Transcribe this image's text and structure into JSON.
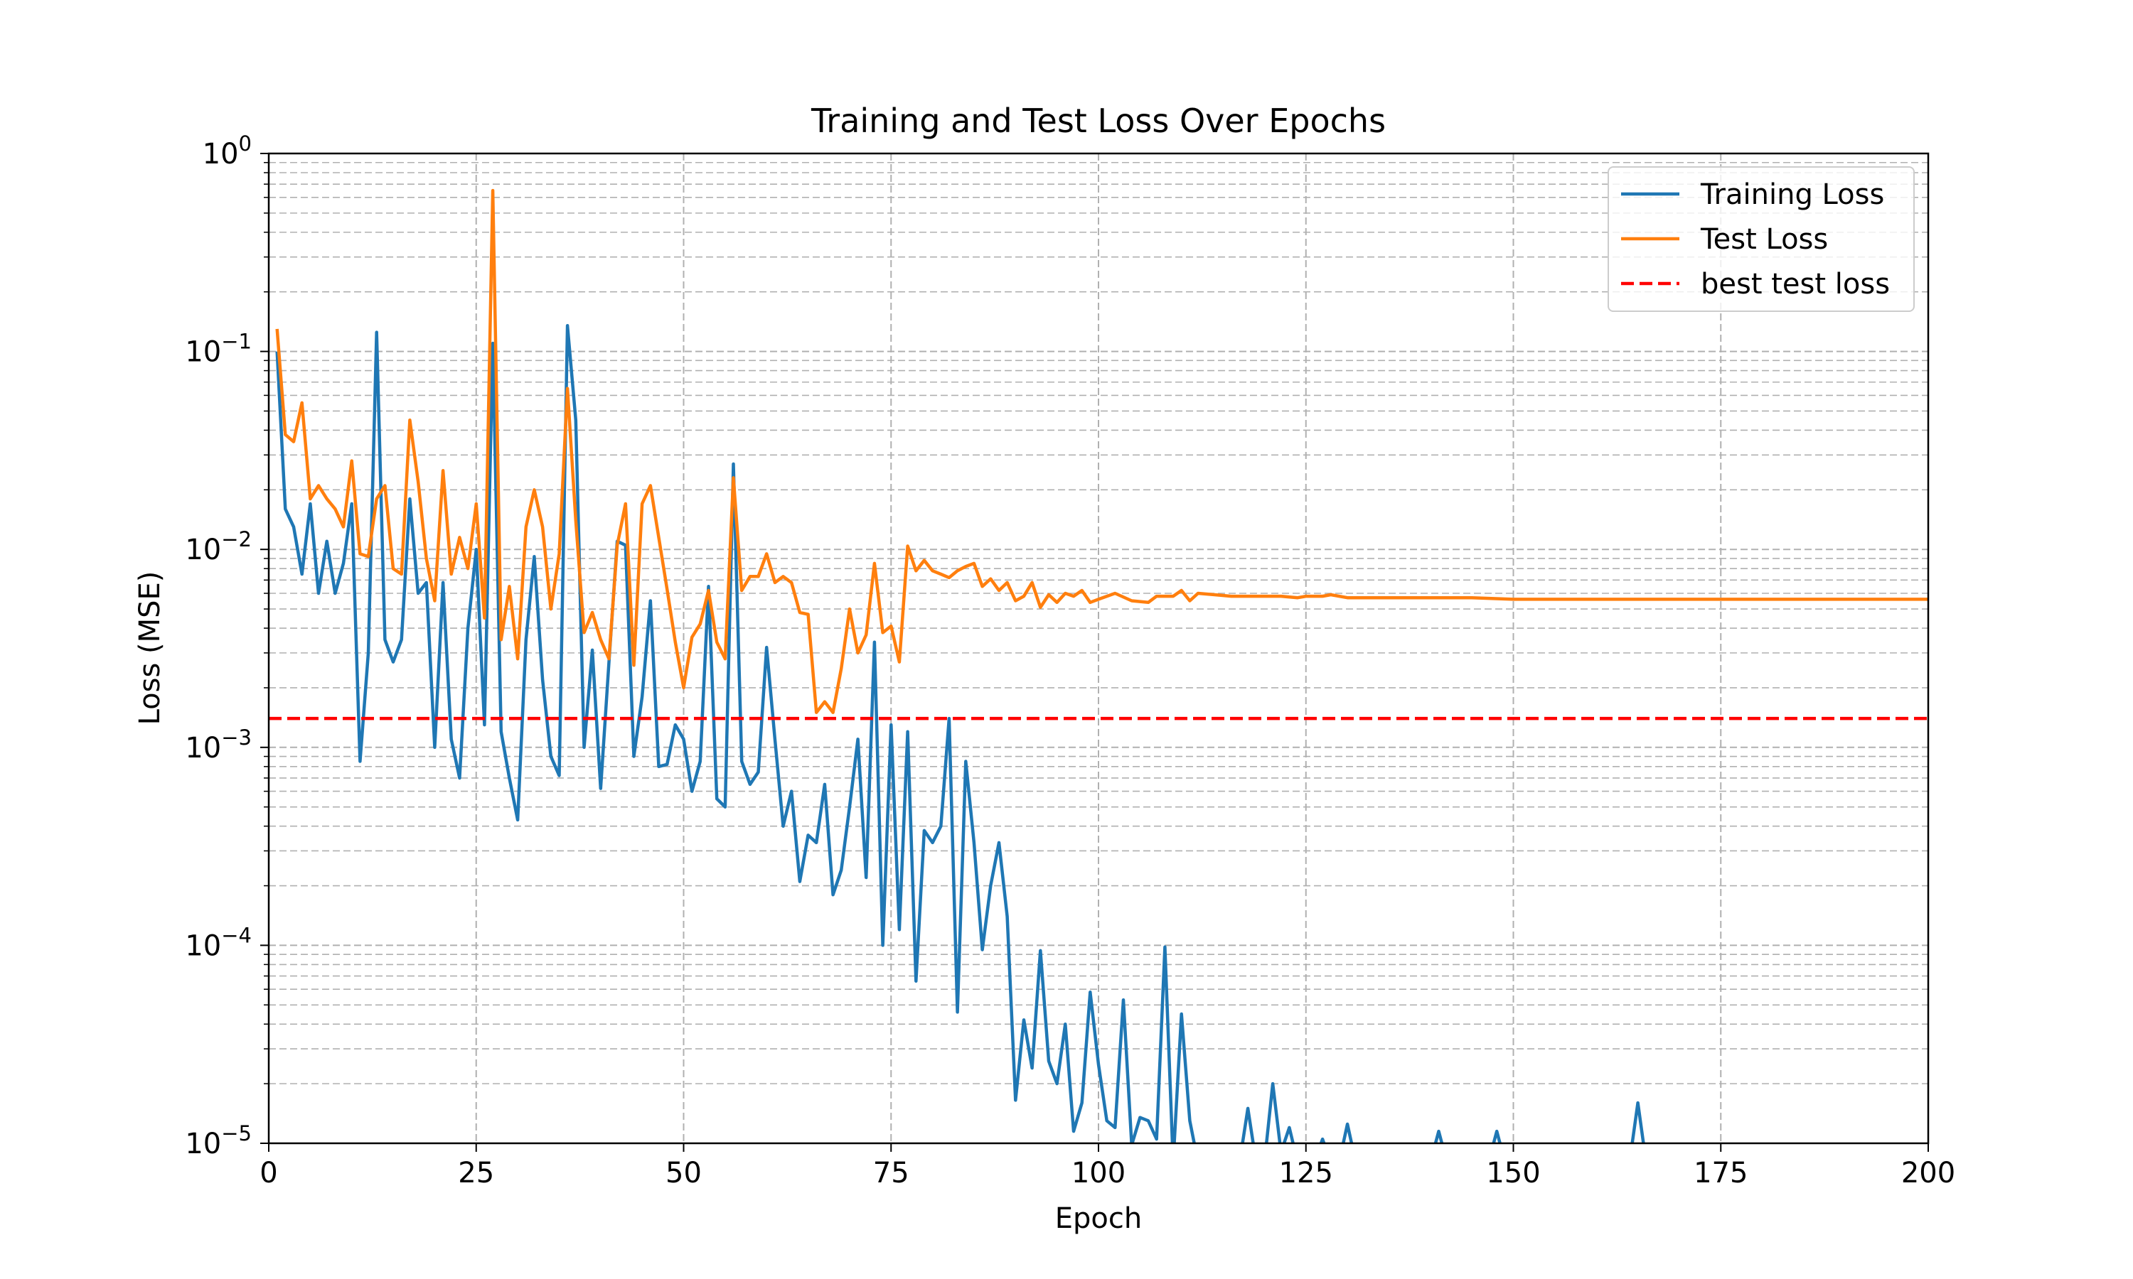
{
  "chart_data": {
    "type": "line",
    "title": "Training and Test Loss Over Epochs",
    "xlabel": "Epoch",
    "ylabel": "Loss (MSE)",
    "xlim": [
      0,
      200
    ],
    "ylim": [
      1e-05,
      1
    ],
    "yscale": "log",
    "grid": true,
    "legend_position": "top-right",
    "x_ticks": [
      0,
      25,
      50,
      75,
      100,
      125,
      150,
      175,
      200
    ],
    "x_tick_labels": [
      "0",
      "25",
      "50",
      "75",
      "100",
      "125",
      "150",
      "175",
      "200"
    ],
    "y_ticks": [
      1e-05,
      0.0001,
      0.001,
      0.01,
      0.1,
      1
    ],
    "y_tick_base": "10",
    "y_tick_exponents": [
      "−5",
      "−4",
      "−3",
      "−2",
      "−1",
      "0"
    ],
    "series": [
      {
        "name": "Training Loss",
        "color": "#1f77b4",
        "style": "solid",
        "points": [
          [
            1,
            0.1
          ],
          [
            2,
            0.016
          ],
          [
            3,
            0.013
          ],
          [
            4,
            0.0075
          ],
          [
            5,
            0.017
          ],
          [
            6,
            0.006
          ],
          [
            7,
            0.011
          ],
          [
            8,
            0.006
          ],
          [
            9,
            0.0085
          ],
          [
            10,
            0.017
          ],
          [
            11,
            0.00085
          ],
          [
            12,
            0.003
          ],
          [
            13,
            0.125
          ],
          [
            14,
            0.0035
          ],
          [
            15,
            0.0027
          ],
          [
            16,
            0.0035
          ],
          [
            17,
            0.018
          ],
          [
            18,
            0.006
          ],
          [
            19,
            0.0068
          ],
          [
            20,
            0.001
          ],
          [
            21,
            0.0068
          ],
          [
            22,
            0.0011
          ],
          [
            23,
            0.0007
          ],
          [
            24,
            0.004
          ],
          [
            25,
            0.01
          ],
          [
            26,
            0.0013
          ],
          [
            27,
            0.11
          ],
          [
            28,
            0.0012
          ],
          [
            29,
            0.0007
          ],
          [
            30,
            0.00043
          ],
          [
            31,
            0.0035
          ],
          [
            32,
            0.0092
          ],
          [
            33,
            0.0022
          ],
          [
            34,
            0.0009
          ],
          [
            35,
            0.00072
          ],
          [
            36,
            0.135
          ],
          [
            37,
            0.045
          ],
          [
            38,
            0.001
          ],
          [
            39,
            0.0031
          ],
          [
            40,
            0.00062
          ],
          [
            41,
            0.0027
          ],
          [
            42,
            0.011
          ],
          [
            43,
            0.0105
          ],
          [
            44,
            0.0009
          ],
          [
            45,
            0.0018
          ],
          [
            46,
            0.0055
          ],
          [
            47,
            0.0008
          ],
          [
            48,
            0.00082
          ],
          [
            49,
            0.0013
          ],
          [
            50,
            0.0011
          ],
          [
            51,
            0.0006
          ],
          [
            52,
            0.00085
          ],
          [
            53,
            0.0065
          ],
          [
            54,
            0.00055
          ],
          [
            55,
            0.0005
          ],
          [
            56,
            0.027
          ],
          [
            57,
            0.00085
          ],
          [
            58,
            0.00065
          ],
          [
            59,
            0.00075
          ],
          [
            60,
            0.0032
          ],
          [
            61,
            0.0011
          ],
          [
            62,
            0.0004
          ],
          [
            63,
            0.0006
          ],
          [
            64,
            0.00021
          ],
          [
            65,
            0.00036
          ],
          [
            66,
            0.00033
          ],
          [
            67,
            0.00065
          ],
          [
            68,
            0.00018
          ],
          [
            69,
            0.00024
          ],
          [
            70,
            0.0005
          ],
          [
            71,
            0.0011
          ],
          [
            72,
            0.00022
          ],
          [
            73,
            0.0034
          ],
          [
            74,
            0.0001
          ],
          [
            75,
            0.0013
          ],
          [
            76,
            0.00012
          ],
          [
            77,
            0.0012
          ],
          [
            78,
            6.6e-05
          ],
          [
            79,
            0.00038
          ],
          [
            80,
            0.00033
          ],
          [
            81,
            0.0004
          ],
          [
            82,
            0.0014
          ],
          [
            83,
            4.6e-05
          ],
          [
            84,
            0.00085
          ],
          [
            85,
            0.00033
          ],
          [
            86,
            9.5e-05
          ],
          [
            87,
            0.0002
          ],
          [
            88,
            0.00033
          ],
          [
            89,
            0.00014
          ],
          [
            90,
            1.65e-05
          ],
          [
            91,
            4.2e-05
          ],
          [
            92,
            2.4e-05
          ],
          [
            93,
            9.4e-05
          ],
          [
            94,
            2.6e-05
          ],
          [
            95,
            2e-05
          ],
          [
            96,
            4e-05
          ],
          [
            97,
            1.15e-05
          ],
          [
            98,
            1.6e-05
          ],
          [
            99,
            5.8e-05
          ],
          [
            100,
            2.5e-05
          ],
          [
            101,
            1.3e-05
          ],
          [
            102,
            1.2e-05
          ],
          [
            103,
            5.3e-05
          ],
          [
            104,
            9.8e-06
          ],
          [
            105,
            1.35e-05
          ],
          [
            106,
            1.3e-05
          ],
          [
            107,
            1.05e-05
          ],
          [
            108,
            9.8e-05
          ],
          [
            109,
            8e-06
          ],
          [
            110,
            4.5e-05
          ],
          [
            111,
            1.3e-05
          ],
          [
            112,
            8e-06
          ],
          [
            113,
            8e-06
          ],
          [
            114,
            8e-06
          ],
          [
            115,
            8e-06
          ],
          [
            116,
            8e-06
          ],
          [
            117,
            8e-06
          ],
          [
            118,
            1.5e-05
          ],
          [
            119,
            8e-06
          ],
          [
            120,
            8e-06
          ],
          [
            121,
            2e-05
          ],
          [
            122,
            9e-06
          ],
          [
            123,
            1.2e-05
          ],
          [
            124,
            8e-06
          ],
          [
            125,
            8e-06
          ],
          [
            126,
            8e-06
          ],
          [
            127,
            1.05e-05
          ],
          [
            128,
            8e-06
          ],
          [
            129,
            8e-06
          ],
          [
            130,
            1.25e-05
          ],
          [
            131,
            8e-06
          ],
          [
            132,
            8e-06
          ],
          [
            140,
            8e-06
          ],
          [
            141,
            1.15e-05
          ],
          [
            142,
            8e-06
          ],
          [
            147,
            8e-06
          ],
          [
            148,
            1.15e-05
          ],
          [
            149,
            8e-06
          ],
          [
            164,
            8e-06
          ],
          [
            165,
            1.6e-05
          ],
          [
            166,
            8e-06
          ],
          [
            200,
            8e-06
          ]
        ]
      },
      {
        "name": "Test Loss",
        "color": "#ff7f0e",
        "style": "solid",
        "points": [
          [
            1,
            0.13
          ],
          [
            2,
            0.038
          ],
          [
            3,
            0.035
          ],
          [
            4,
            0.055
          ],
          [
            5,
            0.018
          ],
          [
            6,
            0.021
          ],
          [
            7,
            0.018
          ],
          [
            8,
            0.016
          ],
          [
            9,
            0.013
          ],
          [
            10,
            0.028
          ],
          [
            11,
            0.0095
          ],
          [
            12,
            0.0092
          ],
          [
            13,
            0.018
          ],
          [
            14,
            0.021
          ],
          [
            15,
            0.008
          ],
          [
            16,
            0.0075
          ],
          [
            17,
            0.045
          ],
          [
            18,
            0.022
          ],
          [
            19,
            0.009
          ],
          [
            20,
            0.0055
          ],
          [
            21,
            0.025
          ],
          [
            22,
            0.0075
          ],
          [
            23,
            0.0115
          ],
          [
            24,
            0.008
          ],
          [
            25,
            0.017
          ],
          [
            26,
            0.0045
          ],
          [
            27,
            0.65
          ],
          [
            28,
            0.0035
          ],
          [
            29,
            0.0065
          ],
          [
            30,
            0.0028
          ],
          [
            31,
            0.013
          ],
          [
            32,
            0.02
          ],
          [
            33,
            0.013
          ],
          [
            34,
            0.005
          ],
          [
            35,
            0.0095
          ],
          [
            36,
            0.065
          ],
          [
            37,
            0.014
          ],
          [
            38,
            0.0038
          ],
          [
            39,
            0.0048
          ],
          [
            40,
            0.0035
          ],
          [
            41,
            0.0028
          ],
          [
            42,
            0.0105
          ],
          [
            43,
            0.017
          ],
          [
            44,
            0.0026
          ],
          [
            45,
            0.017
          ],
          [
            46,
            0.021
          ],
          [
            47,
            0.0115
          ],
          [
            48,
            0.0063
          ],
          [
            49,
            0.0034
          ],
          [
            50,
            0.002
          ],
          [
            51,
            0.0036
          ],
          [
            52,
            0.0042
          ],
          [
            53,
            0.0062
          ],
          [
            54,
            0.0034
          ],
          [
            55,
            0.0028
          ],
          [
            56,
            0.023
          ],
          [
            57,
            0.0062
          ],
          [
            58,
            0.0073
          ],
          [
            59,
            0.0073
          ],
          [
            60,
            0.0095
          ],
          [
            61,
            0.0068
          ],
          [
            62,
            0.0073
          ],
          [
            63,
            0.0068
          ],
          [
            64,
            0.0048
          ],
          [
            65,
            0.0047
          ],
          [
            66,
            0.0015
          ],
          [
            67,
            0.0017
          ],
          [
            68,
            0.0015
          ],
          [
            69,
            0.0025
          ],
          [
            70,
            0.005
          ],
          [
            71,
            0.003
          ],
          [
            72,
            0.0037
          ],
          [
            73,
            0.0085
          ],
          [
            74,
            0.0038
          ],
          [
            75,
            0.0041
          ],
          [
            76,
            0.0027
          ],
          [
            77,
            0.0104
          ],
          [
            78,
            0.0078
          ],
          [
            79,
            0.0088
          ],
          [
            80,
            0.0078
          ],
          [
            81,
            0.0075
          ],
          [
            82,
            0.0072
          ],
          [
            83,
            0.0078
          ],
          [
            84,
            0.0082
          ],
          [
            85,
            0.0085
          ],
          [
            86,
            0.0065
          ],
          [
            87,
            0.0071
          ],
          [
            88,
            0.0062
          ],
          [
            89,
            0.0068
          ],
          [
            90,
            0.0055
          ],
          [
            91,
            0.0058
          ],
          [
            92,
            0.0068
          ],
          [
            93,
            0.0051
          ],
          [
            94,
            0.0059
          ],
          [
            95,
            0.0054
          ],
          [
            96,
            0.006
          ],
          [
            97,
            0.0058
          ],
          [
            98,
            0.0062
          ],
          [
            99,
            0.0054
          ],
          [
            100,
            0.0056
          ],
          [
            102,
            0.006
          ],
          [
            104,
            0.0055
          ],
          [
            106,
            0.0054
          ],
          [
            107,
            0.0058
          ],
          [
            109,
            0.0058
          ],
          [
            110,
            0.0062
          ],
          [
            111,
            0.0055
          ],
          [
            112,
            0.006
          ],
          [
            114,
            0.0059
          ],
          [
            116,
            0.0058
          ],
          [
            118,
            0.0058
          ],
          [
            120,
            0.0058
          ],
          [
            122,
            0.0058
          ],
          [
            124,
            0.0057
          ],
          [
            125,
            0.0058
          ],
          [
            127,
            0.0058
          ],
          [
            128,
            0.0059
          ],
          [
            130,
            0.0057
          ],
          [
            135,
            0.0057
          ],
          [
            140,
            0.0057
          ],
          [
            145,
            0.0057
          ],
          [
            150,
            0.0056
          ],
          [
            160,
            0.0056
          ],
          [
            170,
            0.0056
          ],
          [
            180,
            0.0056
          ],
          [
            190,
            0.0056
          ],
          [
            200,
            0.0056
          ]
        ]
      },
      {
        "name": "best test loss",
        "color": "#ff0000",
        "style": "dashed",
        "points": [
          [
            0,
            0.0014
          ],
          [
            200,
            0.0014
          ]
        ]
      }
    ]
  }
}
